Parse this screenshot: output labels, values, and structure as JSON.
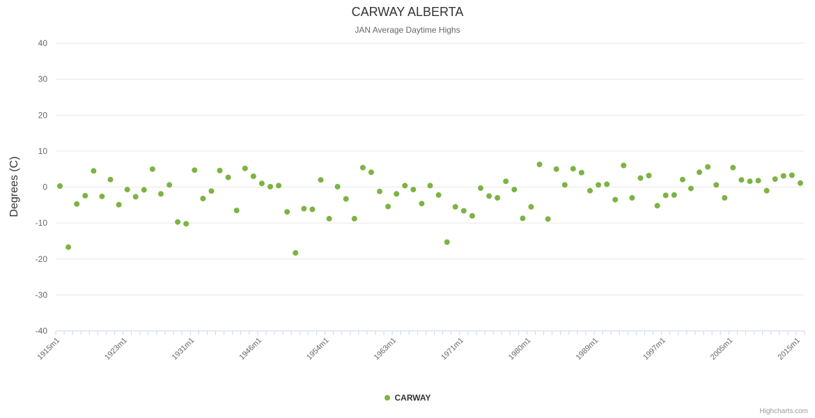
{
  "header": {
    "title": "CARWAY ALBERTA",
    "subtitle": "JAN Average Daytime Highs"
  },
  "legend": {
    "items": [
      {
        "label": "CARWAY",
        "color": "#7cb342"
      }
    ]
  },
  "credits": {
    "label": "Highcharts.com"
  },
  "chart_data": {
    "type": "scatter",
    "title": "CARWAY ALBERTA",
    "subtitle": "JAN Average Daytime Highs",
    "xlabel": "",
    "ylabel": "Degrees (C)",
    "ylim": [
      -40,
      40
    ],
    "y_ticks": [
      40,
      30,
      20,
      10,
      0,
      -10,
      -20,
      -30,
      -40
    ],
    "grid": "horizontal",
    "legend_position": "bottom",
    "label_step": 8,
    "marker_radius": 4,
    "x_tick_labels": [
      "1915m1",
      "1923m1",
      "1931m1",
      "1946m1",
      "1954m1",
      "1963m1",
      "1971m1",
      "1980m1",
      "1989m1",
      "1997m1",
      "2005m1",
      "2015m1"
    ],
    "categories": [
      "1915m1",
      "1916m1",
      "1917m1",
      "1918m1",
      "1919m1",
      "1920m1",
      "1921m1",
      "1922m1",
      "1923m1",
      "1924m1",
      "1925m1",
      "1926m1",
      "1927m1",
      "1928m1",
      "1929m1",
      "1930m1",
      "1931m1",
      "1932m1",
      "1933m1",
      "1934m1",
      "1935m1",
      "1936m1",
      "1937m1",
      "1938m1",
      "1946m1",
      "1947m1",
      "1948m1",
      "1949m1",
      "1950m1",
      "1951m1",
      "1952m1",
      "1953m1",
      "1954m1",
      "1955m1",
      "1956m1",
      "1958m1",
      "1959m1",
      "1960m1",
      "1961m1",
      "1962m1",
      "1963m1",
      "1964m1",
      "1965m1",
      "1966m1",
      "1967m1",
      "1968m1",
      "1969m1",
      "1970m1",
      "1971m1",
      "1972m1",
      "1973m1",
      "1974m1",
      "1976m1",
      "1977m1",
      "1978m1",
      "1979m1",
      "1980m1",
      "1981m1",
      "1982m1",
      "1983m1",
      "1985m1",
      "1986m1",
      "1987m1",
      "1988m1",
      "1989m1",
      "1990m1",
      "1991m1",
      "1992m1",
      "1993m1",
      "1994m1",
      "1995m1",
      "1996m1",
      "1997m1",
      "1998m1",
      "1999m1",
      "2000m1",
      "2001m1",
      "2002m1",
      "2003m1",
      "2004m1",
      "2005m1",
      "2006m1",
      "2008m1",
      "2009m1",
      "2010m1",
      "2012m1",
      "2013m1",
      "2014m1",
      "2015m1"
    ],
    "series": [
      {
        "name": "CARWAY",
        "color": "#7cb342",
        "values": [
          0.3,
          -16.7,
          -4.7,
          -2.4,
          4.5,
          -2.6,
          2.1,
          -4.9,
          -0.7,
          -2.7,
          -0.8,
          5.0,
          -1.9,
          0.6,
          -9.7,
          -10.2,
          4.7,
          -3.2,
          -1.1,
          4.6,
          2.7,
          -6.5,
          5.2,
          3.0,
          1.0,
          0.1,
          0.4,
          -6.9,
          -18.3,
          -6.0,
          -6.2,
          2.0,
          -8.8,
          0.1,
          -3.3,
          -8.8,
          5.4,
          4.1,
          -1.2,
          -5.4,
          -1.9,
          0.4,
          -0.7,
          -4.6,
          0.4,
          -2.2,
          -15.3,
          -5.5,
          -6.6,
          -8.0,
          -0.3,
          -2.5,
          -3.0,
          1.6,
          -0.7,
          -8.7,
          -5.5,
          6.3,
          -8.9,
          5.0,
          0.6,
          5.1,
          4.0,
          -1.0,
          0.6,
          0.8,
          -3.5,
          6.0,
          -3.0,
          2.5,
          3.2,
          -5.2,
          -2.3,
          -2.2,
          2.1,
          -0.4,
          4.1,
          5.6,
          0.6,
          -3.0,
          5.4,
          2.0,
          1.6,
          1.8,
          -1.0,
          2.2,
          3.1,
          3.3,
          1.1
        ]
      }
    ]
  }
}
